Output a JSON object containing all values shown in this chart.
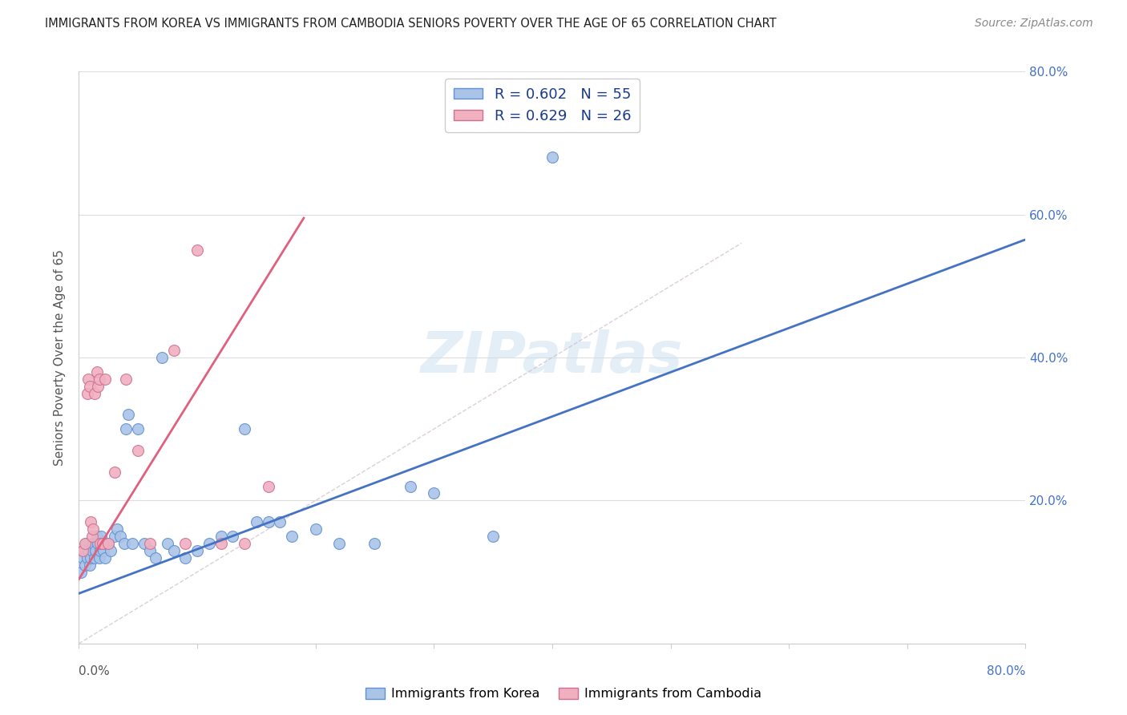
{
  "title": "IMMIGRANTS FROM KOREA VS IMMIGRANTS FROM CAMBODIA SENIORS POVERTY OVER THE AGE OF 65 CORRELATION CHART",
  "source": "Source: ZipAtlas.com",
  "ylabel": "Seniors Poverty Over the Age of 65",
  "xlim": [
    0,
    0.8
  ],
  "ylim": [
    0,
    0.8
  ],
  "legend_korea_R": "R = 0.602",
  "legend_korea_N": "N = 55",
  "legend_cambodia_R": "R = 0.629",
  "legend_cambodia_N": "N = 26",
  "color_korea_fill": "#aac4e8",
  "color_korea_edge": "#6090d0",
  "color_cambodia_fill": "#f0b0c0",
  "color_cambodia_edge": "#d07090",
  "color_korea_line": "#4472c4",
  "color_cambodia_line": "#e06080",
  "korea_scatter_x": [
    0.002,
    0.003,
    0.004,
    0.005,
    0.006,
    0.007,
    0.008,
    0.009,
    0.01,
    0.011,
    0.012,
    0.013,
    0.014,
    0.015,
    0.016,
    0.017,
    0.018,
    0.019,
    0.02,
    0.021,
    0.022,
    0.023,
    0.025,
    0.027,
    0.03,
    0.032,
    0.035,
    0.038,
    0.04,
    0.042,
    0.045,
    0.05,
    0.055,
    0.06,
    0.065,
    0.07,
    0.075,
    0.08,
    0.09,
    0.1,
    0.11,
    0.12,
    0.13,
    0.14,
    0.15,
    0.16,
    0.17,
    0.18,
    0.2,
    0.22,
    0.25,
    0.28,
    0.3,
    0.35,
    0.4
  ],
  "korea_scatter_y": [
    0.1,
    0.12,
    0.13,
    0.11,
    0.14,
    0.12,
    0.13,
    0.11,
    0.12,
    0.13,
    0.14,
    0.12,
    0.13,
    0.15,
    0.14,
    0.12,
    0.13,
    0.15,
    0.14,
    0.13,
    0.12,
    0.14,
    0.14,
    0.13,
    0.15,
    0.16,
    0.15,
    0.14,
    0.3,
    0.32,
    0.14,
    0.3,
    0.14,
    0.13,
    0.12,
    0.4,
    0.14,
    0.13,
    0.12,
    0.13,
    0.14,
    0.15,
    0.15,
    0.3,
    0.17,
    0.17,
    0.17,
    0.15,
    0.16,
    0.14,
    0.14,
    0.22,
    0.21,
    0.15,
    0.68
  ],
  "cambodia_scatter_x": [
    0.003,
    0.005,
    0.007,
    0.008,
    0.009,
    0.01,
    0.011,
    0.012,
    0.013,
    0.015,
    0.016,
    0.017,
    0.018,
    0.02,
    0.022,
    0.025,
    0.03,
    0.04,
    0.05,
    0.06,
    0.08,
    0.09,
    0.1,
    0.12,
    0.14,
    0.16
  ],
  "cambodia_scatter_y": [
    0.13,
    0.14,
    0.35,
    0.37,
    0.36,
    0.17,
    0.15,
    0.16,
    0.35,
    0.38,
    0.36,
    0.37,
    0.14,
    0.14,
    0.37,
    0.14,
    0.24,
    0.37,
    0.27,
    0.14,
    0.41,
    0.14,
    0.55,
    0.14,
    0.14,
    0.22
  ],
  "korea_line_x": [
    0.0,
    0.8
  ],
  "korea_line_y": [
    0.07,
    0.565
  ],
  "cambodia_line_x": [
    0.0,
    0.19
  ],
  "cambodia_line_y": [
    0.09,
    0.595
  ],
  "diag_line_x": [
    0.0,
    0.56
  ],
  "diag_line_y": [
    0.0,
    0.56
  ],
  "xticks": [
    0.0,
    0.1,
    0.2,
    0.3,
    0.4,
    0.5,
    0.6,
    0.7,
    0.8
  ],
  "yticks": [
    0.0,
    0.2,
    0.4,
    0.6,
    0.8
  ],
  "ytick_labels_right": [
    "20.0%",
    "40.0%",
    "60.0%",
    "80.0%"
  ],
  "ytick_vals_right": [
    0.2,
    0.4,
    0.6,
    0.8
  ]
}
